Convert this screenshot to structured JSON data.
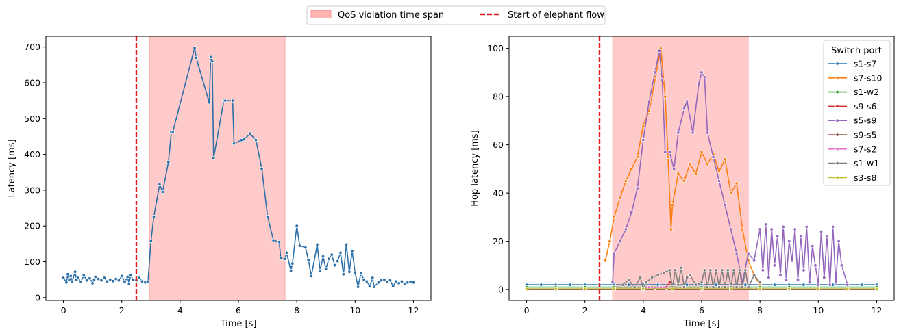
{
  "legend_top": {
    "violation_label": "QoS violation time span",
    "violation_color": "#ffb3b3",
    "elephant_label": "Start of elephant flow",
    "elephant_color": "#e41a1c"
  },
  "chart_data": [
    {
      "type": "line",
      "xlabel": "Time [s]",
      "ylabel": "Latency [ms]",
      "xlim": [
        -0.6,
        12.6
      ],
      "ylim": [
        -8,
        730
      ],
      "xticks": [
        0,
        2,
        4,
        6,
        8,
        10,
        12
      ],
      "yticks": [
        0,
        100,
        200,
        300,
        400,
        500,
        600,
        700
      ],
      "grid": false,
      "vline_x": 2.5,
      "span": [
        2.95,
        7.6
      ],
      "series": [
        {
          "color": "#2b6fa8",
          "x": [
            0.0,
            0.1,
            0.15,
            0.2,
            0.25,
            0.3,
            0.4,
            0.45,
            0.5,
            0.6,
            0.7,
            0.8,
            0.9,
            1.0,
            1.05,
            1.1,
            1.2,
            1.3,
            1.4,
            1.5,
            1.6,
            1.7,
            1.8,
            1.9,
            2.0,
            2.1,
            2.2,
            2.25,
            2.3,
            2.4,
            2.5,
            2.6,
            2.7,
            2.8,
            2.9,
            3.0,
            3.1,
            3.3,
            3.4,
            3.6,
            3.7,
            3.75,
            4.5,
            4.55,
            5.0,
            5.05,
            5.1,
            5.15,
            5.5,
            5.55,
            5.8,
            5.85,
            6.1,
            6.2,
            6.4,
            6.6,
            6.8,
            7.0,
            7.2,
            7.4,
            7.45,
            7.6,
            7.65,
            7.8,
            7.85,
            8.0,
            8.1,
            8.3,
            8.4,
            8.5,
            8.7,
            8.8,
            8.9,
            9.0,
            9.1,
            9.2,
            9.3,
            9.4,
            9.5,
            9.6,
            9.7,
            9.8,
            9.9,
            10.0,
            10.1,
            10.2,
            10.3,
            10.4,
            10.5,
            10.6,
            10.65,
            10.8,
            10.9,
            11.0,
            11.1,
            11.2,
            11.3,
            11.4,
            11.5,
            11.6,
            11.7,
            11.8,
            11.9,
            12.0
          ],
          "y": [
            55,
            42,
            65,
            50,
            60,
            45,
            72,
            50,
            55,
            44,
            62,
            48,
            54,
            40,
            50,
            58,
            52,
            48,
            55,
            45,
            50,
            46,
            52,
            48,
            60,
            44,
            58,
            38,
            62,
            50,
            48,
            55,
            45,
            42,
            45,
            158,
            226,
            316,
            295,
            378,
            462,
            463,
            698,
            670,
            545,
            672,
            660,
            390,
            550,
            550,
            550,
            430,
            440,
            442,
            458,
            440,
            360,
            226,
            160,
            155,
            110,
            108,
            125,
            75,
            95,
            200,
            145,
            140,
            105,
            60,
            148,
            75,
            115,
            80,
            108,
            120,
            90,
            102,
            125,
            65,
            148,
            72,
            130,
            70,
            30,
            68,
            50,
            45,
            32,
            55,
            30,
            42,
            48,
            50,
            44,
            48,
            32,
            45,
            40,
            45,
            38,
            42,
            44,
            42
          ]
        }
      ]
    },
    {
      "type": "line",
      "xlabel": "Time [s]",
      "ylabel": "Hop latency [ms]",
      "xlim": [
        -0.6,
        12.6
      ],
      "ylim": [
        -4.5,
        105
      ],
      "xticks": [
        0,
        2,
        4,
        6,
        8,
        10,
        12
      ],
      "yticks": [
        0,
        20,
        40,
        60,
        80,
        100
      ],
      "grid": false,
      "vline_x": 2.5,
      "span": [
        2.95,
        7.6
      ],
      "legend_title": "Switch port",
      "legend_position": "top-right",
      "series": [
        {
          "name": "s1-s7",
          "color": "#1f77b4",
          "x": [
            0,
            0.5,
            1.0,
            1.5,
            2.0,
            2.5,
            3.0,
            3.5,
            4.0,
            4.5,
            5.0,
            5.5,
            6.0,
            6.5,
            7.0,
            7.5,
            8.0,
            8.5,
            9.0,
            9.5,
            10.0,
            10.5,
            11.0,
            11.5,
            12.0
          ],
          "y": [
            2,
            2,
            2,
            2,
            2,
            2,
            2,
            2,
            2,
            2,
            2,
            2,
            2,
            2,
            2,
            2,
            2,
            2,
            2,
            2,
            2,
            2,
            2,
            2,
            2
          ]
        },
        {
          "name": "s7-s10",
          "color": "#ff7f0e",
          "x": [
            2.7,
            2.85,
            3.0,
            3.2,
            3.4,
            3.6,
            3.8,
            4.0,
            4.2,
            4.4,
            4.6,
            4.75,
            4.85,
            4.95,
            5.0,
            5.2,
            5.4,
            5.6,
            5.8,
            6.0,
            6.2,
            6.4,
            6.6,
            6.8,
            7.0,
            7.2,
            7.4,
            7.6,
            7.8,
            8.0
          ],
          "y": [
            12,
            20,
            30,
            38,
            45,
            50,
            55,
            68,
            74,
            87,
            100,
            80,
            55,
            25,
            35,
            48,
            45,
            52,
            48,
            57,
            52,
            56,
            49,
            54,
            40,
            44,
            25,
            12,
            6,
            2
          ]
        },
        {
          "name": "s1-w2",
          "color": "#2ca02c",
          "x": [
            0,
            1,
            2,
            3,
            4,
            5,
            6,
            7,
            8,
            9,
            10,
            11,
            12
          ],
          "y": [
            1,
            1,
            1,
            1,
            1,
            1,
            1,
            1,
            1,
            1,
            1,
            1,
            1
          ]
        },
        {
          "name": "s9-s6",
          "color": "#d62728",
          "x": [
            4.8,
            4.9,
            5.0
          ],
          "y": [
            1,
            3,
            1
          ]
        },
        {
          "name": "s5-s9",
          "color": "#9467bd",
          "x": [
            2.95,
            3.0,
            3.2,
            3.4,
            3.6,
            3.8,
            4.0,
            4.2,
            4.4,
            4.55,
            4.65,
            4.75,
            4.9,
            5.05,
            5.2,
            5.4,
            5.5,
            5.7,
            5.9,
            6.0,
            6.1,
            6.2,
            6.4,
            6.6,
            6.8,
            7.0,
            7.2,
            7.4,
            7.6,
            7.8,
            8.0,
            8.1,
            8.2,
            8.3,
            8.4,
            8.5,
            8.6,
            8.7,
            8.8,
            8.9,
            9.0,
            9.1,
            9.2,
            9.3,
            9.4,
            9.5,
            9.6,
            9.7,
            9.8,
            9.9,
            10.0,
            10.1,
            10.2,
            10.3,
            10.4,
            10.5,
            10.6,
            10.7,
            10.8,
            11.0
          ],
          "y": [
            3,
            15,
            20,
            25,
            32,
            42,
            62,
            78,
            90,
            99,
            87,
            57,
            57,
            50,
            65,
            75,
            78,
            65,
            85,
            90,
            88,
            65,
            55,
            45,
            35,
            25,
            15,
            3,
            15,
            12,
            25,
            8,
            27,
            5,
            25,
            10,
            22,
            6,
            26,
            4,
            20,
            12,
            25,
            4,
            22,
            8,
            26,
            3,
            18,
            10,
            2,
            24,
            5,
            22,
            2,
            26,
            3,
            20,
            10,
            2
          ]
        },
        {
          "name": "s9-s5",
          "color": "#8c564b",
          "x": [
            0,
            1,
            2,
            3,
            4,
            5,
            6,
            7,
            8,
            9,
            10,
            11,
            12
          ],
          "y": [
            0,
            0,
            0,
            0,
            0,
            0,
            0,
            0,
            0,
            0,
            0,
            0,
            0
          ]
        },
        {
          "name": "s7-s2",
          "color": "#e377c2",
          "x": [
            4.0,
            4.2,
            4.4,
            4.6,
            4.8
          ],
          "y": [
            0.5,
            1,
            0.5,
            1,
            0.5
          ]
        },
        {
          "name": "s1-w1",
          "color": "#7f7f7f",
          "x": [
            3.3,
            3.5,
            3.7,
            3.9,
            4.0,
            4.1,
            4.3,
            4.5,
            4.7,
            4.9,
            5.0,
            5.1,
            5.2,
            5.3,
            5.4,
            5.5,
            5.6,
            5.8,
            6.0,
            6.1,
            6.2,
            6.3,
            6.4,
            6.5,
            6.6,
            6.7,
            6.8,
            6.9,
            7.0,
            7.1,
            7.2,
            7.3,
            7.4,
            7.5,
            7.6,
            7.8,
            8.0
          ],
          "y": [
            2,
            4,
            1,
            5,
            0,
            3,
            5,
            6,
            7,
            8,
            1,
            8,
            2,
            9,
            1,
            5,
            6,
            2,
            3,
            8,
            1,
            8,
            1,
            8,
            1,
            8,
            1,
            8,
            1,
            8,
            1,
            8,
            1,
            8,
            1,
            6,
            3
          ]
        },
        {
          "name": "s3-s8",
          "color": "#bcbd22",
          "x": [
            0,
            1,
            2,
            3,
            4,
            5,
            6,
            7,
            8,
            9,
            10,
            11,
            12
          ],
          "y": [
            0.3,
            0.3,
            0.3,
            0.3,
            0.3,
            0.3,
            0.3,
            0.3,
            0.3,
            0.3,
            0.3,
            0.3,
            0.3
          ]
        }
      ]
    }
  ]
}
